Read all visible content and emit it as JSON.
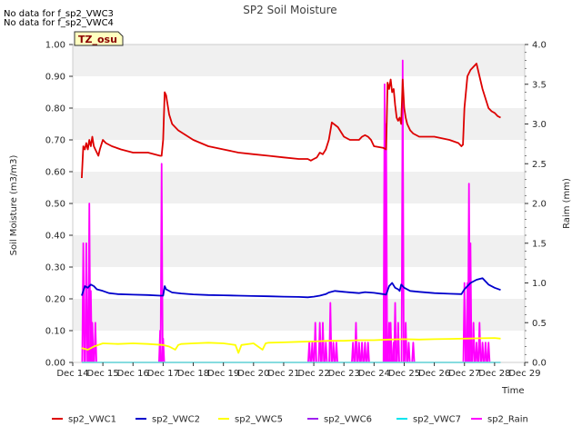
{
  "chart_data": {
    "type": "line",
    "title": "SP2 Soil Moisture",
    "notes": [
      "No data for f_sp2_VWC3",
      "No data for f_sp2_VWC4"
    ],
    "badge": "TZ_osu",
    "xlabel": "Time",
    "ylabel": "Soil Moisture (m3/m3)",
    "y2label": "Raim (mm)",
    "x_ticks": [
      "Dec 14",
      "Dec 15",
      "Dec 16",
      "Dec 17",
      "Dec 18",
      "Dec 19",
      "Dec 20",
      "Dec 21",
      "Dec 22",
      "Dec 23",
      "Dec 24",
      "Dec 25",
      "Dec 26",
      "Dec 27",
      "Dec 28",
      "Dec 29"
    ],
    "x_tick_values": [
      14,
      15,
      16,
      17,
      18,
      19,
      20,
      21,
      22,
      23,
      24,
      25,
      26,
      27,
      28,
      29
    ],
    "xlim": [
      14,
      29
    ],
    "ylim": [
      0,
      1.0
    ],
    "y_ticks": [
      "0.00",
      "0.10",
      "0.20",
      "0.30",
      "0.40",
      "0.50",
      "0.60",
      "0.70",
      "0.80",
      "0.90",
      "1.00"
    ],
    "y_tick_values": [
      0,
      0.1,
      0.2,
      0.3,
      0.4,
      0.5,
      0.6,
      0.7,
      0.8,
      0.9,
      1.0
    ],
    "y2lim": [
      0,
      4.0
    ],
    "y2_ticks": [
      "0.0",
      "0.5",
      "1.0",
      "1.5",
      "2.0",
      "2.5",
      "3.0",
      "3.5",
      "4.0"
    ],
    "y2_tick_values": [
      0,
      0.5,
      1.0,
      1.5,
      2.0,
      2.5,
      3.0,
      3.5,
      4.0
    ],
    "grid": "horizontal bands",
    "legend_position": "bottom",
    "series": [
      {
        "name": "sp2_VWC1",
        "color": "#dd0000",
        "axis": "left",
        "x": [
          14.3,
          14.35,
          14.4,
          14.45,
          14.5,
          14.55,
          14.6,
          14.65,
          14.7,
          14.75,
          14.8,
          14.85,
          14.9,
          15.0,
          15.1,
          15.3,
          15.6,
          16.0,
          16.5,
          16.9,
          16.95,
          17.0,
          17.05,
          17.1,
          17.2,
          17.3,
          17.5,
          18.0,
          18.5,
          19.0,
          19.5,
          20.0,
          20.5,
          21.0,
          21.5,
          21.8,
          21.9,
          22.0,
          22.1,
          22.2,
          22.3,
          22.4,
          22.5,
          22.6,
          22.8,
          23.0,
          23.2,
          23.5,
          23.6,
          23.7,
          23.8,
          23.9,
          24.0,
          24.3,
          24.4,
          24.45,
          24.5,
          24.55,
          24.6,
          24.65,
          24.7,
          24.75,
          24.8,
          24.85,
          24.9,
          24.95,
          25.0,
          25.05,
          25.1,
          25.2,
          25.3,
          25.5,
          26.0,
          26.5,
          26.8,
          26.9,
          26.95,
          27.0,
          27.1,
          27.2,
          27.3,
          27.4,
          27.5,
          27.6,
          27.7,
          27.8,
          27.9,
          28.0,
          28.1,
          28.2
        ],
        "values": [
          0.58,
          0.68,
          0.67,
          0.69,
          0.67,
          0.7,
          0.68,
          0.71,
          0.68,
          0.67,
          0.66,
          0.65,
          0.67,
          0.7,
          0.69,
          0.68,
          0.67,
          0.66,
          0.66,
          0.65,
          0.65,
          0.7,
          0.85,
          0.84,
          0.78,
          0.75,
          0.73,
          0.7,
          0.68,
          0.67,
          0.66,
          0.655,
          0.65,
          0.645,
          0.64,
          0.64,
          0.635,
          0.64,
          0.645,
          0.66,
          0.655,
          0.67,
          0.7,
          0.755,
          0.74,
          0.71,
          0.7,
          0.7,
          0.71,
          0.715,
          0.71,
          0.7,
          0.68,
          0.675,
          0.67,
          0.88,
          0.86,
          0.89,
          0.85,
          0.86,
          0.81,
          0.77,
          0.76,
          0.77,
          0.75,
          0.89,
          0.8,
          0.77,
          0.75,
          0.73,
          0.72,
          0.71,
          0.71,
          0.7,
          0.69,
          0.68,
          0.685,
          0.8,
          0.9,
          0.92,
          0.93,
          0.94,
          0.9,
          0.86,
          0.83,
          0.8,
          0.79,
          0.785,
          0.775,
          0.77
        ]
      },
      {
        "name": "sp2_VWC2",
        "color": "#0000cc",
        "axis": "left",
        "x": [
          14.3,
          14.4,
          14.5,
          14.6,
          14.7,
          14.8,
          15.0,
          15.2,
          15.5,
          16.0,
          16.5,
          16.9,
          17.0,
          17.05,
          17.1,
          17.3,
          17.6,
          18.0,
          18.5,
          19.0,
          19.5,
          20.0,
          20.5,
          21.0,
          21.5,
          21.8,
          22.0,
          22.2,
          22.4,
          22.5,
          22.7,
          23.0,
          23.5,
          23.7,
          24.0,
          24.3,
          24.4,
          24.5,
          24.6,
          24.7,
          24.8,
          24.85,
          24.9,
          25.0,
          25.2,
          25.5,
          26.0,
          26.5,
          26.9,
          27.0,
          27.2,
          27.4,
          27.6,
          27.8,
          28.0,
          28.2
        ],
        "values": [
          0.21,
          0.24,
          0.235,
          0.245,
          0.24,
          0.23,
          0.225,
          0.218,
          0.215,
          0.213,
          0.212,
          0.21,
          0.21,
          0.24,
          0.23,
          0.22,
          0.217,
          0.214,
          0.212,
          0.211,
          0.21,
          0.209,
          0.208,
          0.207,
          0.206,
          0.205,
          0.207,
          0.21,
          0.215,
          0.22,
          0.225,
          0.222,
          0.218,
          0.221,
          0.219,
          0.215,
          0.213,
          0.24,
          0.25,
          0.235,
          0.23,
          0.225,
          0.245,
          0.235,
          0.225,
          0.222,
          0.218,
          0.216,
          0.215,
          0.23,
          0.25,
          0.26,
          0.265,
          0.245,
          0.235,
          0.228
        ]
      },
      {
        "name": "sp2_VWC5",
        "color": "#ffff00",
        "axis": "left",
        "x": [
          14.3,
          14.5,
          14.7,
          15.0,
          15.5,
          16.0,
          16.5,
          17.0,
          17.2,
          17.4,
          17.5,
          17.6,
          18.0,
          18.5,
          19.0,
          19.4,
          19.5,
          19.6,
          20.0,
          20.3,
          20.4,
          20.5,
          21.0,
          21.5,
          22.0,
          22.5,
          23.0,
          23.5,
          24.0,
          24.5,
          25.0,
          25.5,
          26.0,
          26.5,
          27.0,
          27.5,
          28.0,
          28.2
        ],
        "values": [
          0.045,
          0.04,
          0.05,
          0.06,
          0.058,
          0.06,
          0.058,
          0.055,
          0.05,
          0.04,
          0.055,
          0.058,
          0.06,
          0.062,
          0.06,
          0.055,
          0.03,
          0.055,
          0.06,
          0.04,
          0.06,
          0.062,
          0.063,
          0.065,
          0.066,
          0.068,
          0.068,
          0.07,
          0.07,
          0.072,
          0.073,
          0.072,
          0.073,
          0.074,
          0.075,
          0.076,
          0.077,
          0.075
        ]
      },
      {
        "name": "sp2_VWC6",
        "color": "#a020f0",
        "axis": "left",
        "x": [],
        "values": []
      },
      {
        "name": "sp2_VWC7",
        "color": "#00e5ee",
        "axis": "left",
        "x": [
          14.3,
          28.2
        ],
        "values": [
          0.0,
          0.0
        ]
      },
      {
        "name": "sp2_Rain",
        "color": "#ff00ff",
        "axis": "right",
        "x": [
          14.35,
          14.45,
          14.55,
          14.6,
          14.65,
          14.75,
          16.9,
          16.95,
          17.0,
          21.85,
          21.95,
          22.05,
          22.2,
          22.3,
          22.4,
          22.55,
          22.65,
          22.75,
          23.3,
          23.4,
          23.5,
          23.6,
          23.7,
          23.8,
          24.35,
          24.4,
          24.5,
          24.55,
          24.65,
          24.7,
          24.8,
          24.95,
          25.05,
          25.15,
          25.3,
          27.0,
          27.1,
          27.15,
          27.2,
          27.3,
          27.4,
          27.5,
          27.6,
          27.7,
          27.8
        ],
        "values": [
          1.5,
          1.5,
          2.0,
          0.9,
          0.5,
          0.5,
          0.4,
          2.5,
          0.3,
          0.25,
          0.25,
          0.5,
          0.5,
          0.5,
          0.25,
          0.75,
          0.25,
          0.25,
          0.25,
          0.5,
          0.25,
          0.25,
          0.25,
          0.25,
          3.5,
          3.0,
          0.5,
          0.5,
          0.25,
          0.75,
          0.5,
          3.8,
          0.5,
          0.25,
          0.25,
          1.0,
          1.0,
          2.25,
          1.5,
          0.5,
          0.25,
          0.5,
          0.25,
          0.25,
          0.25
        ]
      }
    ]
  }
}
